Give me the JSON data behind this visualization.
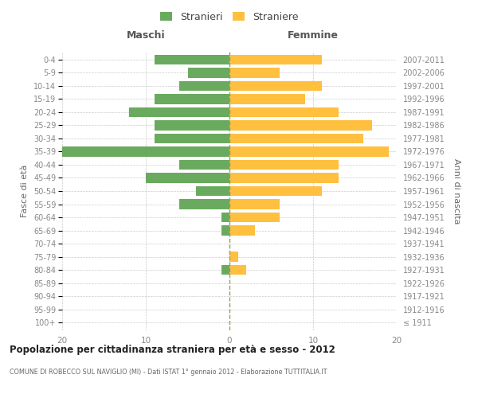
{
  "age_groups": [
    "100+",
    "95-99",
    "90-94",
    "85-89",
    "80-84",
    "75-79",
    "70-74",
    "65-69",
    "60-64",
    "55-59",
    "50-54",
    "45-49",
    "40-44",
    "35-39",
    "30-34",
    "25-29",
    "20-24",
    "15-19",
    "10-14",
    "5-9",
    "0-4"
  ],
  "birth_years": [
    "≤ 1911",
    "1912-1916",
    "1917-1921",
    "1922-1926",
    "1927-1931",
    "1932-1936",
    "1937-1941",
    "1942-1946",
    "1947-1951",
    "1952-1956",
    "1957-1961",
    "1962-1966",
    "1967-1971",
    "1972-1976",
    "1977-1981",
    "1982-1986",
    "1987-1991",
    "1992-1996",
    "1997-2001",
    "2002-2006",
    "2007-2011"
  ],
  "males": [
    0,
    0,
    0,
    0,
    1,
    0,
    0,
    1,
    1,
    6,
    4,
    10,
    6,
    20,
    9,
    9,
    12,
    9,
    6,
    5,
    9
  ],
  "females": [
    0,
    0,
    0,
    0,
    2,
    1,
    0,
    3,
    6,
    6,
    11,
    13,
    13,
    19,
    16,
    17,
    13,
    9,
    11,
    6,
    11
  ],
  "male_color": "#6aaa5e",
  "female_color": "#ffbf3f",
  "male_label": "Stranieri",
  "female_label": "Straniere",
  "title": "Popolazione per cittadinanza straniera per età e sesso - 2012",
  "subtitle": "COMUNE DI ROBECCO SUL NAVIGLIO (MI) - Dati ISTAT 1° gennaio 2012 - Elaborazione TUTTITALIA.IT",
  "xlabel_left": "Maschi",
  "xlabel_right": "Femmine",
  "ylabel_left": "Fasce di età",
  "ylabel_right": "Anni di nascita",
  "xlim": 20,
  "background_color": "#ffffff",
  "grid_color": "#cccccc",
  "bar_height": 0.75
}
